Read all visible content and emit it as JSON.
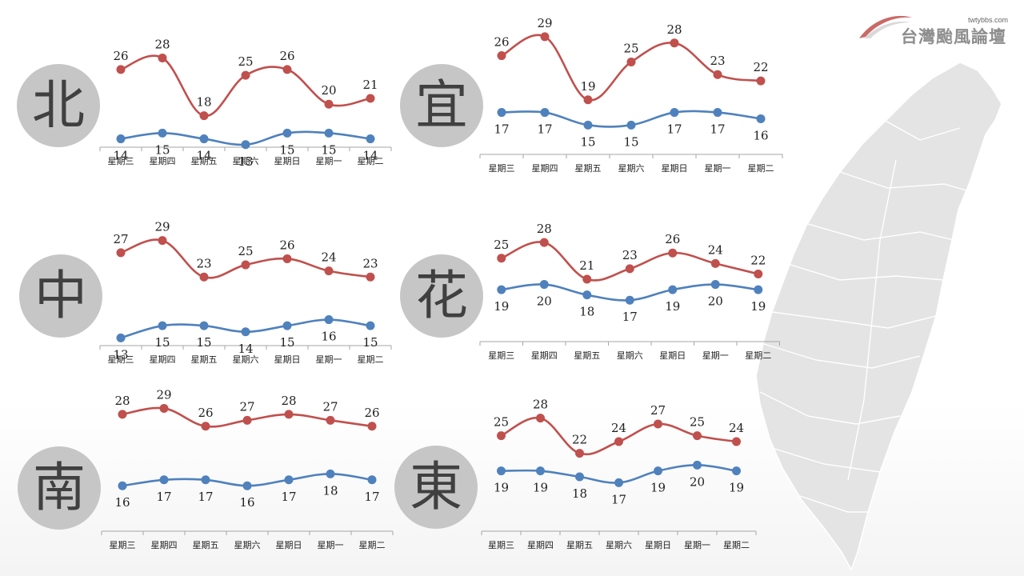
{
  "logo": {
    "url": "twtybbs.com",
    "title": "台灣颱風論壇"
  },
  "colors": {
    "high": "#c0504d",
    "low": "#4f81bd",
    "axis": "#a6a6a6",
    "circle": "#c6c6c6",
    "map": "#e4e4e4"
  },
  "chart_data": [
    {
      "type": "line",
      "region": "北",
      "categories": [
        "星期三",
        "星期四",
        "星期五",
        "星期六",
        "星期日",
        "星期一",
        "星期二"
      ],
      "series": [
        {
          "values": [
            26,
            28,
            18,
            25,
            26,
            20,
            21
          ]
        },
        {
          "values": [
            14,
            15,
            14,
            13,
            15,
            15,
            14
          ]
        }
      ]
    },
    {
      "type": "line",
      "region": "宜",
      "categories": [
        "星期三",
        "星期四",
        "星期五",
        "星期六",
        "星期日",
        "星期一",
        "星期二"
      ],
      "series": [
        {
          "values": [
            26,
            29,
            19,
            25,
            28,
            23,
            22
          ]
        },
        {
          "values": [
            17,
            17,
            15,
            15,
            17,
            17,
            16
          ]
        }
      ]
    },
    {
      "type": "line",
      "region": "中",
      "categories": [
        "星期三",
        "星期四",
        "星期五",
        "星期六",
        "星期日",
        "星期一",
        "星期二"
      ],
      "series": [
        {
          "values": [
            27,
            29,
            23,
            25,
            26,
            24,
            23
          ]
        },
        {
          "values": [
            13,
            15,
            15,
            14,
            15,
            16,
            15
          ]
        }
      ]
    },
    {
      "type": "line",
      "region": "花",
      "categories": [
        "星期三",
        "星期四",
        "星期五",
        "星期六",
        "星期日",
        "星期一",
        "星期二"
      ],
      "series": [
        {
          "values": [
            25,
            28,
            21,
            23,
            26,
            24,
            22
          ]
        },
        {
          "values": [
            19,
            20,
            18,
            17,
            19,
            20,
            19
          ]
        }
      ]
    },
    {
      "type": "line",
      "region": "南",
      "categories": [
        "星期三",
        "星期四",
        "星期五",
        "星期六",
        "星期日",
        "星期一",
        "星期二"
      ],
      "series": [
        {
          "values": [
            28,
            29,
            26,
            27,
            28,
            27,
            26
          ]
        },
        {
          "values": [
            16,
            17,
            17,
            16,
            17,
            18,
            17
          ]
        }
      ]
    },
    {
      "type": "line",
      "region": "東",
      "categories": [
        "星期三",
        "星期四",
        "星期五",
        "星期六",
        "星期日",
        "星期一",
        "星期二"
      ],
      "series": [
        {
          "values": [
            25,
            28,
            22,
            24,
            27,
            25,
            24
          ]
        },
        {
          "values": [
            19,
            19,
            18,
            17,
            19,
            20,
            19
          ]
        }
      ]
    }
  ]
}
